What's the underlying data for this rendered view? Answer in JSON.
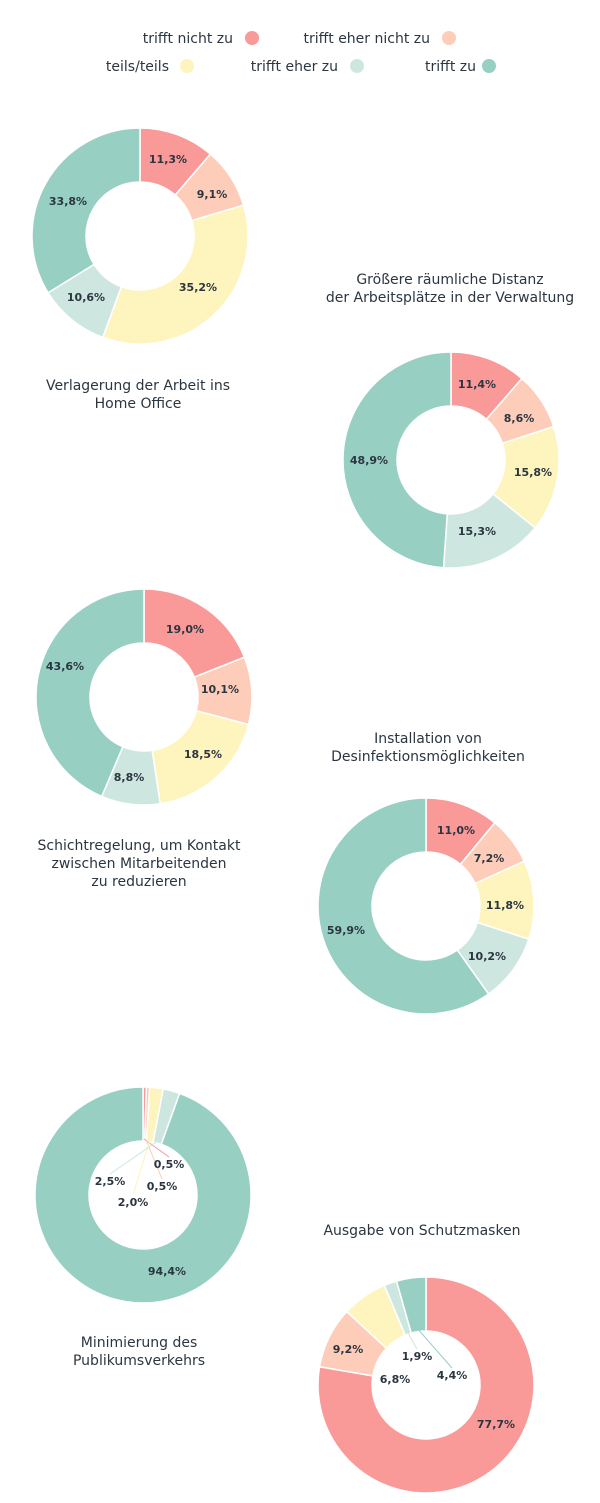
{
  "colors": {
    "trifft nicht zu": "#f99a99",
    "trifft eher nicht zu": "#fdcdb9",
    "teils/teils": "#fef4bd",
    "trifft eher zu": "#cde7e0",
    "trifft zu": "#97cfc3",
    "text": "#2b3640"
  },
  "legend": {
    "items": [
      "trifft nicht zu",
      "trifft eher nicht zu",
      "teils/teils",
      "trifft eher zu",
      "trifft zu"
    ]
  },
  "chart_data": [
    {
      "type": "pie",
      "title": [
        "Verlagerung der Arbeit ins",
        "Home Office"
      ],
      "categories": [
        "trifft nicht zu",
        "trifft eher nicht zu",
        "teils/teils",
        "trifft eher zu",
        "trifft zu"
      ],
      "values": [
        11.3,
        9.1,
        35.2,
        10.6,
        33.8
      ],
      "labels": [
        "11,3%",
        "9,1%",
        "35,2%",
        "10,6%",
        "33,8%"
      ]
    },
    {
      "type": "pie",
      "title": [
        "Größere räumliche Distanz",
        "der Arbeitsplätze in der Verwaltung"
      ],
      "categories": [
        "trifft nicht zu",
        "trifft eher nicht zu",
        "teils/teils",
        "trifft eher zu",
        "trifft zu"
      ],
      "values": [
        11.4,
        8.6,
        15.8,
        15.3,
        48.9
      ],
      "labels": [
        "11,4%",
        "8,6%",
        "15,8%",
        "15,3%",
        "48,9%"
      ]
    },
    {
      "type": "pie",
      "title": [
        "Schichtregelung, um Kontakt",
        "zwischen Mitarbeitenden",
        "zu reduzieren"
      ],
      "categories": [
        "trifft nicht zu",
        "trifft eher nicht zu",
        "teils/teils",
        "trifft eher zu",
        "trifft zu"
      ],
      "values": [
        19.0,
        10.1,
        18.5,
        8.8,
        43.6
      ],
      "labels": [
        "19,0%",
        "10,1%",
        "18,5%",
        "8,8%",
        "43,6%"
      ]
    },
    {
      "type": "pie",
      "title": [
        "Installation von",
        "Desinfektionsmöglichkeiten"
      ],
      "categories": [
        "trifft nicht zu",
        "trifft eher nicht zu",
        "teils/teils",
        "trifft eher zu",
        "trifft zu"
      ],
      "values": [
        11.0,
        7.2,
        11.8,
        10.2,
        59.9
      ],
      "labels": [
        "11,0%",
        "7,2%",
        "11,8%",
        "10,2%",
        "59,9%"
      ]
    },
    {
      "type": "pie",
      "title": [
        "Minimierung des",
        "Publikumsverkehrs"
      ],
      "categories": [
        "trifft nicht zu",
        "trifft eher nicht zu",
        "teils/teils",
        "trifft eher zu",
        "trifft zu"
      ],
      "values": [
        0.5,
        0.5,
        2.0,
        2.5,
        94.4
      ],
      "labels": [
        "0,5%",
        "0,5%",
        "2,0%",
        "2,5%",
        "94,4%"
      ]
    },
    {
      "type": "pie",
      "title": [
        "Ausgabe von Schutzmasken"
      ],
      "categories": [
        "trifft nicht zu",
        "trifft eher nicht zu",
        "teils/teils",
        "trifft eher zu",
        "trifft zu"
      ],
      "values": [
        77.7,
        9.2,
        6.8,
        1.9,
        4.4
      ],
      "labels": [
        "77,7%",
        "9,2%",
        "6,8%",
        "1,9%",
        "4,4%"
      ]
    }
  ]
}
